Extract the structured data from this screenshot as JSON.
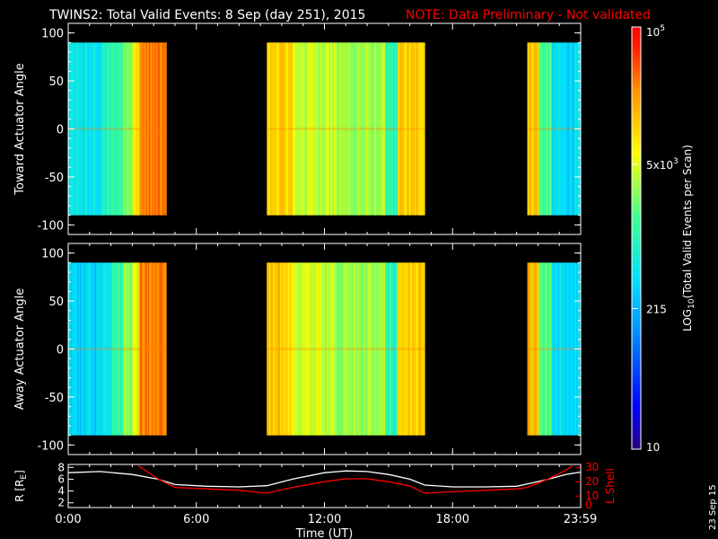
{
  "title": {
    "main": "TWINS2: Total Valid Events:  8 Sep (day 251), 2015",
    "note": "NOTE: Data Preliminary - Not validated"
  },
  "colors": {
    "background": "#000000",
    "foreground": "#ffffff",
    "note": "#ff0000",
    "r_line": "#ffffff",
    "lshell_line": "#ff0000"
  },
  "date_stamp": "23 Sep 15",
  "chart_data": [
    {
      "id": "toward",
      "type": "heatmap",
      "ylabel": "Toward Actuator Angle",
      "ylim": [
        -110,
        110
      ],
      "yticks": [
        100,
        50,
        0,
        -50,
        -100
      ],
      "xlim": [
        0,
        24
      ],
      "data_y_range": [
        -90,
        90
      ],
      "observation_windows_hours": [
        [
          0,
          4.6
        ],
        [
          9.3,
          16.7
        ],
        [
          21.5,
          24
        ]
      ],
      "grid": false
    },
    {
      "id": "away",
      "type": "heatmap",
      "ylabel": "Away Actuator Angle",
      "ylim": [
        -110,
        110
      ],
      "yticks": [
        100,
        50,
        0,
        -50,
        -100
      ],
      "xlim": [
        0,
        24
      ],
      "data_y_range": [
        -90,
        90
      ],
      "observation_windows_hours": [
        [
          0,
          4.6
        ],
        [
          9.3,
          16.7
        ],
        [
          21.5,
          24
        ]
      ],
      "grid": false
    },
    {
      "id": "orbit",
      "type": "line",
      "xlabel": "Time (UT)",
      "xtick_labels": [
        "0:00",
        "6:00",
        "12:00",
        "18:00",
        "23:59"
      ],
      "xtick_hours": [
        0,
        6,
        12,
        18,
        23.98
      ],
      "xlim": [
        0,
        24
      ],
      "ylabel": "R [R",
      "ylabel_sub": "E",
      "ylabel_tail": "]",
      "yticks": [
        2,
        4,
        6,
        8
      ],
      "ylim": [
        1.2,
        8.5
      ],
      "ylabel_right": "L Shell",
      "yticks_right": [
        10,
        20,
        30
      ],
      "ylim_right": [
        2,
        32
      ],
      "series": [
        {
          "axis": "left",
          "x": [
            0,
            1.5,
            3,
            4.2,
            5,
            6.5,
            8,
            9.3,
            10.5,
            12,
            13,
            14,
            15,
            16,
            16.7,
            18,
            19.5,
            21,
            21.5,
            22.5,
            23.3,
            24
          ],
          "y": [
            7.1,
            7.3,
            6.8,
            6.0,
            5.1,
            4.8,
            4.7,
            4.9,
            6.0,
            7.1,
            7.4,
            7.3,
            6.8,
            6.0,
            5.0,
            4.7,
            4.7,
            4.8,
            5.2,
            6.0,
            6.8,
            7.2
          ]
        },
        {
          "axis": "right",
          "x": [
            3.3,
            4.2,
            5,
            6.5,
            8,
            9.3,
            10.5,
            12,
            13,
            14,
            15,
            16,
            16.7,
            18,
            19.5,
            21,
            21.5,
            22.5,
            23.3,
            23.6
          ],
          "y": [
            31,
            22,
            16,
            15,
            14,
            12,
            16,
            20,
            22,
            22,
            20,
            17,
            12,
            13,
            14,
            15,
            16,
            22,
            28,
            31
          ]
        }
      ]
    }
  ],
  "colorbar": {
    "label": "LOG",
    "label_sub": "10",
    "label_tail": "(Total Valid  Events per Scan)",
    "ticks": [
      {
        "text": "10",
        "exp": "5",
        "value": 100000
      },
      {
        "text": "5x10",
        "exp": "3",
        "value": 5000
      },
      {
        "text": "215",
        "exp": "",
        "value": 215
      },
      {
        "text": "10",
        "exp": "",
        "value": 10
      }
    ],
    "stops": [
      "#2a0080",
      "#0000ff",
      "#0090ff",
      "#00e0ff",
      "#40ff90",
      "#ffff00",
      "#ff9000",
      "#ff2000",
      "#ff0000"
    ]
  }
}
